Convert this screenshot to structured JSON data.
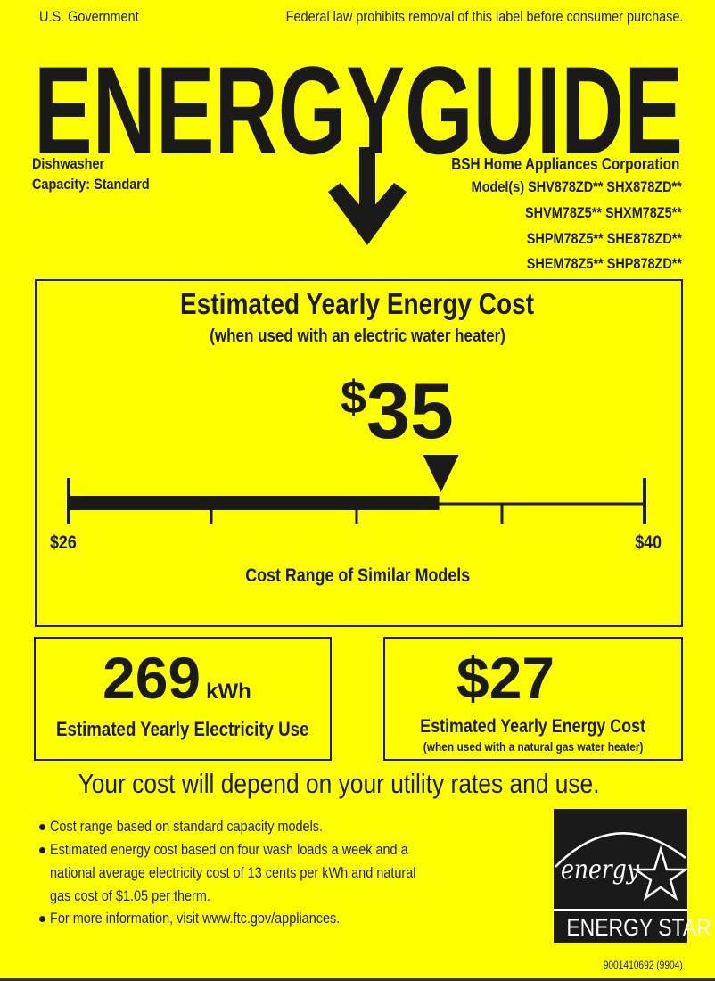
{
  "header": {
    "government": "U.S. Government",
    "federal_notice": "Federal law prohibits removal of this label before consumer purchase.",
    "title": "ENERGYGUIDE"
  },
  "product": {
    "type": "Dishwasher",
    "capacity_label": "Capacity:",
    "capacity_value": "Standard",
    "manufacturer": "BSH Home Appliances Corporation",
    "model_lines": [
      "Model(s) SHV878ZD** SHX878ZD**",
      "SHVM78Z5** SHXM78Z5**",
      "SHPM78Z5** SHE878ZD**",
      "SHEM78Z5** SHP878ZD**"
    ]
  },
  "main_cost": {
    "title": "Estimated Yearly Energy Cost",
    "subtitle": "(when used with an electric water heater)",
    "value_symbol": "$",
    "value": "35",
    "amount": 35,
    "range_min": 26,
    "range_max": 40,
    "range_min_label": "$26",
    "range_max_label": "$40",
    "range_caption": "Cost Range of Similar Models"
  },
  "electricity": {
    "value": "269",
    "unit": "kWh",
    "caption": "Estimated Yearly Electricity Use"
  },
  "gas_cost": {
    "value": "$27",
    "caption": "Estimated Yearly Energy Cost",
    "subcaption": "(when used with a natural gas water heater)"
  },
  "disclaimer": "Your cost will depend on your utility rates and use.",
  "notes": [
    "Cost range based on standard capacity models.",
    "Estimated energy cost based on four wash loads a week and a",
    "national average electricity cost of 13 cents per kWh and natural",
    "gas cost of $1.05 per therm.",
    "For more information, visit www.ftc.gov/appliances."
  ],
  "energy_star": {
    "script": "energy",
    "label": "ENERGY STAR"
  },
  "label_code": "9001410692 (9904)",
  "colors": {
    "background": "#ffff00",
    "ink": "#1a1a1a"
  }
}
